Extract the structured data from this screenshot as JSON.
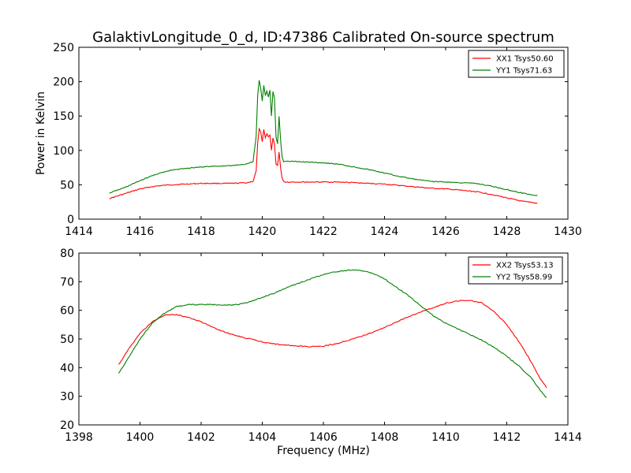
{
  "figure_title": "GalaktivLongitude_0_d, ID:47386 Calibrated On-source spectrum",
  "colors": {
    "red": "#ff0000",
    "green": "#008000"
  },
  "chart_data": [
    {
      "type": "line",
      "title": "GalaktivLongitude_0_d, ID:47386 Calibrated On-source spectrum",
      "xlabel": "",
      "ylabel": "Power in Kelvin",
      "xlim": [
        1414,
        1430
      ],
      "ylim": [
        0,
        250
      ],
      "xticks": [
        1414,
        1416,
        1418,
        1420,
        1422,
        1424,
        1426,
        1428,
        1430
      ],
      "yticks": [
        0,
        50,
        100,
        150,
        200,
        250
      ],
      "grid": false,
      "legend_position": "top-right",
      "series": [
        {
          "name": "XX1 Tsys50.60",
          "color": "#ff0000",
          "x": [
            1415.0,
            1415.5,
            1416.0,
            1416.5,
            1417.0,
            1417.5,
            1418.0,
            1418.5,
            1419.0,
            1419.5,
            1419.7,
            1419.8,
            1419.85,
            1419.9,
            1419.95,
            1420.0,
            1420.05,
            1420.1,
            1420.15,
            1420.2,
            1420.25,
            1420.3,
            1420.35,
            1420.4,
            1420.45,
            1420.5,
            1420.55,
            1420.6,
            1420.65,
            1420.7,
            1420.75,
            1421.0,
            1421.5,
            1422.0,
            1422.5,
            1423.0,
            1423.5,
            1424.0,
            1424.5,
            1425.0,
            1425.5,
            1426.0,
            1426.5,
            1427.0,
            1427.5,
            1428.0,
            1428.5,
            1429.0
          ],
          "y": [
            30,
            37,
            44,
            48,
            50,
            51,
            52,
            52,
            52,
            53,
            55,
            70,
            110,
            132,
            126,
            112,
            130,
            118,
            125,
            120,
            122,
            100,
            118,
            110,
            80,
            78,
            97,
            75,
            60,
            55,
            54,
            54,
            54,
            54,
            54,
            53,
            52,
            51,
            49,
            47,
            45,
            44,
            42,
            40,
            36,
            31,
            26,
            23
          ]
        },
        {
          "name": "YY1 Tsys71.63",
          "color": "#008000",
          "x": [
            1415.0,
            1415.5,
            1416.0,
            1416.5,
            1417.0,
            1417.5,
            1418.0,
            1418.5,
            1419.0,
            1419.5,
            1419.7,
            1419.8,
            1419.85,
            1419.9,
            1419.95,
            1420.0,
            1420.05,
            1420.1,
            1420.15,
            1420.2,
            1420.25,
            1420.3,
            1420.35,
            1420.4,
            1420.45,
            1420.5,
            1420.55,
            1420.6,
            1420.65,
            1420.7,
            1420.75,
            1421.0,
            1421.5,
            1422.0,
            1422.5,
            1423.0,
            1423.5,
            1424.0,
            1424.5,
            1425.0,
            1425.5,
            1426.0,
            1426.5,
            1427.0,
            1427.5,
            1428.0,
            1428.5,
            1429.0
          ],
          "y": [
            38,
            46,
            56,
            65,
            71,
            74,
            76,
            77,
            78,
            80,
            84,
            120,
            180,
            202,
            190,
            172,
            194,
            180,
            186,
            178,
            188,
            150,
            186,
            176,
            120,
            110,
            150,
            115,
            90,
            84,
            84,
            84,
            83,
            82,
            80,
            76,
            72,
            67,
            62,
            58,
            55,
            54,
            53,
            52,
            48,
            43,
            38,
            34
          ]
        }
      ]
    },
    {
      "type": "line",
      "title": "",
      "xlabel": "Frequency (MHz)",
      "ylabel": "",
      "xlim": [
        1398,
        1414
      ],
      "ylim": [
        20,
        80
      ],
      "xticks": [
        1398,
        1400,
        1402,
        1404,
        1406,
        1408,
        1410,
        1412,
        1414
      ],
      "yticks": [
        20,
        30,
        40,
        50,
        60,
        70,
        80
      ],
      "grid": false,
      "legend_position": "top-right",
      "series": [
        {
          "name": "XX2 Tsys53.13",
          "color": "#ff0000",
          "x": [
            1399.3,
            1399.6,
            1400.0,
            1400.4,
            1400.8,
            1401.2,
            1401.6,
            1402.0,
            1402.4,
            1402.8,
            1403.2,
            1403.6,
            1404.0,
            1404.4,
            1404.8,
            1405.2,
            1405.6,
            1406.0,
            1406.4,
            1406.8,
            1407.2,
            1407.6,
            1408.0,
            1408.4,
            1408.8,
            1409.2,
            1409.6,
            1410.0,
            1410.4,
            1410.8,
            1411.2,
            1411.6,
            1412.0,
            1412.4,
            1412.8,
            1413.1,
            1413.3
          ],
          "y": [
            41,
            46,
            52,
            56,
            58.3,
            58.5,
            57.5,
            56,
            54,
            52.3,
            51,
            50,
            49,
            48.3,
            47.8,
            47.5,
            47.3,
            47.5,
            48.3,
            49.5,
            50.8,
            52.3,
            54,
            56,
            57.8,
            59.5,
            61,
            62.5,
            63.3,
            63.5,
            62.5,
            59.5,
            55,
            49,
            42,
            36,
            33
          ]
        },
        {
          "name": "YY2 Tsys58.99",
          "color": "#008000",
          "x": [
            1399.3,
            1399.6,
            1400.0,
            1400.4,
            1400.8,
            1401.2,
            1401.6,
            1402.0,
            1402.4,
            1402.8,
            1403.2,
            1403.6,
            1404.0,
            1404.4,
            1404.8,
            1405.2,
            1405.6,
            1406.0,
            1406.4,
            1406.8,
            1407.2,
            1407.6,
            1408.0,
            1408.4,
            1408.8,
            1409.2,
            1409.6,
            1410.0,
            1410.4,
            1410.8,
            1411.2,
            1411.6,
            1412.0,
            1412.4,
            1412.8,
            1413.1,
            1413.3
          ],
          "y": [
            38,
            43,
            50,
            55.5,
            59,
            61.3,
            62,
            62,
            62,
            61.8,
            62,
            63,
            64.5,
            66,
            68,
            69.5,
            71,
            72.5,
            73.5,
            74,
            74,
            73,
            71,
            68,
            65,
            61.5,
            58,
            55.5,
            53.5,
            51.5,
            49.5,
            47,
            44,
            40.5,
            36.5,
            32,
            29.5
          ]
        }
      ]
    }
  ]
}
